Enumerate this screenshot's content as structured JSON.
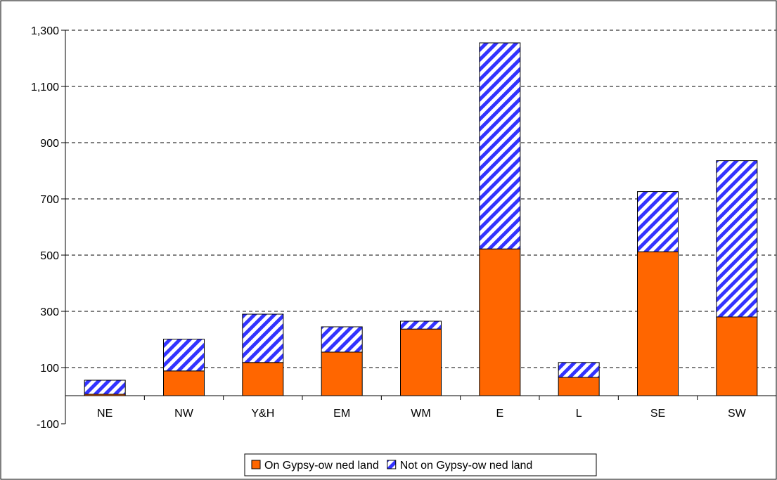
{
  "chart_data": {
    "type": "bar",
    "stacked": true,
    "categories": [
      "NE",
      "NW",
      "Y&H",
      "EM",
      "WM",
      "E",
      "L",
      "SE",
      "SW"
    ],
    "series": [
      {
        "name": "On Gypsy-ow ned land",
        "values": [
          5,
          88,
          118,
          155,
          237,
          522,
          65,
          512,
          280
        ],
        "color": "#ff6600",
        "pattern": "solid"
      },
      {
        "name": "Not on Gypsy-ow ned land",
        "values": [
          50,
          113,
          172,
          90,
          28,
          733,
          53,
          214,
          556
        ],
        "color": "#3333ff",
        "pattern": "diagonal-stripes"
      }
    ],
    "y_ticks": [
      -100,
      100,
      300,
      500,
      700,
      900,
      1100,
      1300
    ],
    "y_tick_labels": [
      "-100",
      "100",
      "300",
      "500",
      "700",
      "900",
      "1,100",
      "1,300"
    ],
    "ylim": [
      -100,
      1300
    ],
    "grid": "horizontal-dashed",
    "legend_placement": "bottom-center",
    "title": "",
    "xlabel": "",
    "ylabel": ""
  }
}
